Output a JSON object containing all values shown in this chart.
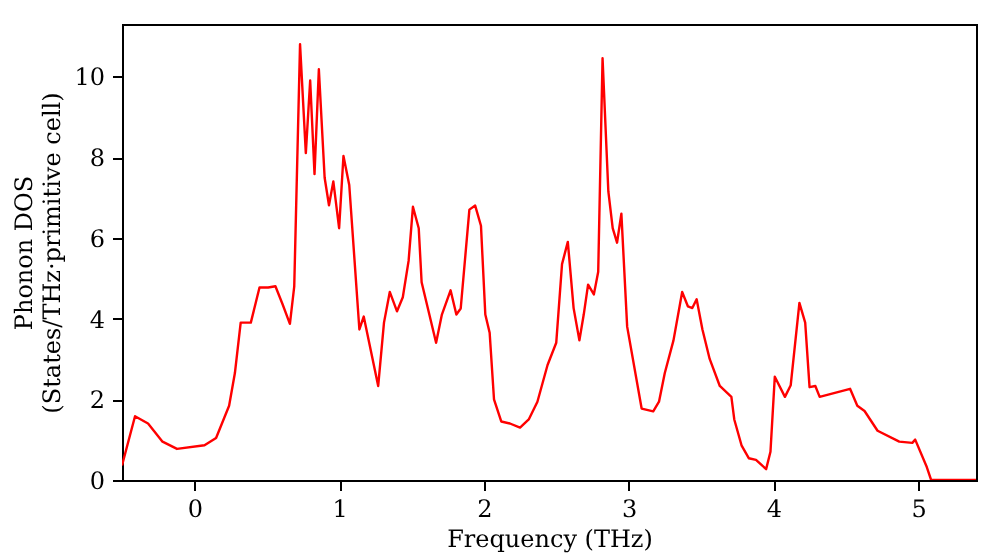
{
  "chart_data": {
    "type": "line",
    "xlabel": "Frequency (THz)",
    "ylabel": "Phonon DOS\n(States/THz·primitive cell)",
    "xlim": [
      -0.5,
      5.4
    ],
    "ylim": [
      0,
      11.3
    ],
    "xticks": [
      0,
      1,
      2,
      3,
      4,
      5
    ],
    "yticks": [
      0,
      2,
      4,
      6,
      8,
      10
    ],
    "grid": false,
    "series": [
      {
        "color": "#ff0000",
        "x": [
          -0.5,
          -0.41,
          -0.32,
          -0.22,
          -0.12,
          0.07,
          0.15,
          0.24,
          0.28,
          0.32,
          0.39,
          0.45,
          0.51,
          0.56,
          0.61,
          0.66,
          0.69,
          0.73,
          0.77,
          0.8,
          0.83,
          0.86,
          0.9,
          0.93,
          0.96,
          1.0,
          1.03,
          1.07,
          1.14,
          1.17,
          1.22,
          1.27,
          1.31,
          1.35,
          1.4,
          1.44,
          1.48,
          1.51,
          1.55,
          1.57,
          1.67,
          1.71,
          1.77,
          1.81,
          1.84,
          1.9,
          1.94,
          1.98,
          2.01,
          2.04,
          2.07,
          2.12,
          2.18,
          2.25,
          2.31,
          2.37,
          2.44,
          2.5,
          2.54,
          2.58,
          2.62,
          2.66,
          2.69,
          2.72,
          2.76,
          2.79,
          2.82,
          2.86,
          2.89,
          2.92,
          2.95,
          2.99,
          3.09,
          3.17,
          3.21,
          3.25,
          3.31,
          3.37,
          3.41,
          3.44,
          3.47,
          3.51,
          3.56,
          3.63,
          3.71,
          3.73,
          3.78,
          3.83,
          3.88,
          3.95,
          3.98,
          4.01,
          4.08,
          4.12,
          4.18,
          4.22,
          4.25,
          4.29,
          4.32,
          4.53,
          4.58,
          4.63,
          4.72,
          4.87,
          4.96,
          4.98,
          5.06,
          5.09,
          5.4
        ],
        "values": [
          0.36,
          1.58,
          1.4,
          0.95,
          0.77,
          0.86,
          1.04,
          1.84,
          2.65,
          3.9,
          3.9,
          4.77,
          4.77,
          4.8,
          4.35,
          3.87,
          4.8,
          10.8,
          8.1,
          9.9,
          7.58,
          10.18,
          7.49,
          6.81,
          7.4,
          6.24,
          8.03,
          7.31,
          3.73,
          4.05,
          3.19,
          2.33,
          3.9,
          4.66,
          4.18,
          4.53,
          5.43,
          6.77,
          6.24,
          4.9,
          3.4,
          4.1,
          4.7,
          4.1,
          4.25,
          6.7,
          6.8,
          6.3,
          4.1,
          3.65,
          2.0,
          1.45,
          1.4,
          1.3,
          1.5,
          1.94,
          2.85,
          3.4,
          5.35,
          5.9,
          4.26,
          3.46,
          4.1,
          4.84,
          4.6,
          5.16,
          10.45,
          7.15,
          6.24,
          5.88,
          6.6,
          3.8,
          1.77,
          1.7,
          1.94,
          2.65,
          3.46,
          4.66,
          4.3,
          4.26,
          4.48,
          3.73,
          3.0,
          2.33,
          2.06,
          1.5,
          0.86,
          0.54,
          0.5,
          0.27,
          0.7,
          2.56,
          2.06,
          2.35,
          4.39,
          3.9,
          2.3,
          2.33,
          2.06,
          2.26,
          1.84,
          1.71,
          1.22,
          0.95,
          0.92,
          1.0,
          0.32,
          0,
          0
        ]
      }
    ]
  }
}
